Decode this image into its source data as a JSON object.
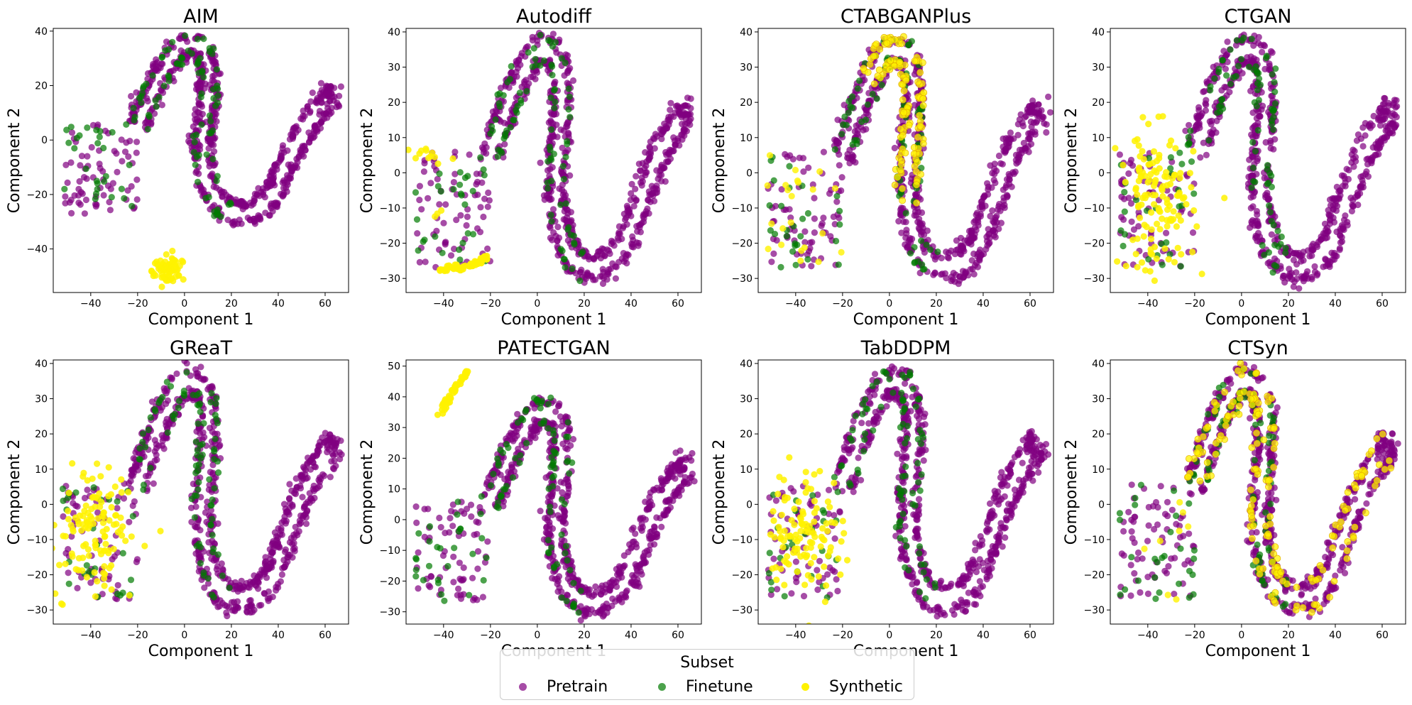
{
  "chart_data": [
    {
      "type": "scatter",
      "title": "AIM",
      "xlabel": "Component 1",
      "ylabel": "Component 2",
      "xlim": [
        -56,
        70
      ],
      "ylim": [
        -56,
        41
      ],
      "xticks": [
        -40,
        -20,
        0,
        20,
        40,
        60
      ],
      "yticks": [
        -40,
        -20,
        0,
        20,
        40
      ],
      "synthetic_clusters": [
        {
          "cx": -7,
          "cy": -48,
          "sx": 3,
          "sy": 3,
          "n": 70
        }
      ],
      "finetune_spread": "low"
    },
    {
      "type": "scatter",
      "title": "Autodiff",
      "xlabel": "Component 1",
      "ylabel": "Component 2",
      "xlim": [
        -56,
        70
      ],
      "ylim": [
        -34,
        41
      ],
      "xticks": [
        -40,
        -20,
        0,
        20,
        40,
        60
      ],
      "yticks": [
        -30,
        -20,
        -10,
        0,
        10,
        20,
        30,
        40
      ],
      "synthetic_arc": [
        {
          "x": -42,
          "y": -27.5
        },
        {
          "x": -35,
          "y": -27
        },
        {
          "x": -29,
          "y": -26.5
        },
        {
          "x": -24,
          "y": -25
        },
        {
          "x": -21,
          "y": -23
        }
      ],
      "synthetic_extra": [
        {
          "cx": -45,
          "cy": 5,
          "sx": 5,
          "sy": 1.2,
          "n": 14
        },
        {
          "cx": -42,
          "cy": -11,
          "sx": 2,
          "sy": 2,
          "n": 3
        }
      ],
      "finetune_spread": "low"
    },
    {
      "type": "scatter",
      "title": "CTABGANPlus",
      "xlabel": "Component 1",
      "ylabel": "Component 2",
      "xlim": [
        -56,
        70
      ],
      "ylim": [
        -34,
        41
      ],
      "xticks": [
        -40,
        -20,
        0,
        20,
        40,
        60
      ],
      "yticks": [
        -30,
        -20,
        -10,
        0,
        10,
        20,
        30,
        40
      ],
      "synthetic_on_curve": {
        "from": 0.14,
        "to": 0.5,
        "n": 120
      },
      "synthetic_left_n": 22,
      "finetune_spread": "low"
    },
    {
      "type": "scatter",
      "title": "CTGAN",
      "xlabel": "Component 1",
      "ylabel": "Component 2",
      "xlim": [
        -56,
        70
      ],
      "ylim": [
        -34,
        41
      ],
      "xticks": [
        -40,
        -20,
        0,
        20,
        40,
        60
      ],
      "yticks": [
        -30,
        -20,
        -10,
        0,
        10,
        20,
        30,
        40
      ],
      "synthetic_clusters": [
        {
          "cx": -36,
          "cy": -8,
          "sx": 8,
          "sy": 10,
          "n": 130
        }
      ],
      "finetune_spread": "low"
    },
    {
      "type": "scatter",
      "title": "GReaT",
      "xlabel": "Component 1",
      "ylabel": "Component 2",
      "xlim": [
        -56,
        70
      ],
      "ylim": [
        -34,
        41
      ],
      "xticks": [
        -40,
        -20,
        0,
        20,
        40,
        60
      ],
      "yticks": [
        -30,
        -20,
        -10,
        0,
        10,
        20,
        30,
        40
      ],
      "synthetic_clusters": [
        {
          "cx": -37,
          "cy": -7,
          "sx": 8,
          "sy": 9,
          "n": 120
        }
      ],
      "finetune_spread": "low"
    },
    {
      "type": "scatter",
      "title": "PATECTGAN",
      "xlabel": "Component 1",
      "ylabel": "Component 2",
      "xlim": [
        -56,
        70
      ],
      "ylim": [
        -34,
        52
      ],
      "xticks": [
        -40,
        -20,
        0,
        20,
        40,
        60
      ],
      "yticks": [
        -30,
        -20,
        -10,
        0,
        10,
        20,
        30,
        40,
        50
      ],
      "synthetic_arc": [
        {
          "x": -42,
          "y": 33
        },
        {
          "x": -38,
          "y": 39
        },
        {
          "x": -34,
          "y": 44
        },
        {
          "x": -30,
          "y": 48
        }
      ],
      "finetune_spread": "low"
    },
    {
      "type": "scatter",
      "title": "TabDDPM",
      "xlabel": "Component 1",
      "ylabel": "Component 2",
      "xlim": [
        -56,
        70
      ],
      "ylim": [
        -34,
        41
      ],
      "xticks": [
        -40,
        -20,
        0,
        20,
        40,
        60
      ],
      "yticks": [
        -30,
        -20,
        -10,
        0,
        10,
        20,
        30,
        40
      ],
      "synthetic_clusters": [
        {
          "cx": -36,
          "cy": -8,
          "sx": 8,
          "sy": 9,
          "n": 110
        }
      ],
      "finetune_spread": "low"
    },
    {
      "type": "scatter",
      "title": "CTSyn",
      "xlabel": "Component 1",
      "ylabel": "Component 2",
      "xlim": [
        -56,
        70
      ],
      "ylim": [
        -34,
        41
      ],
      "xticks": [
        -40,
        -20,
        0,
        20,
        40,
        60
      ],
      "yticks": [
        -30,
        -20,
        -10,
        0,
        10,
        20,
        30,
        40
      ],
      "synthetic_on_curve": {
        "from": 0.0,
        "to": 1.0,
        "n": 170
      },
      "synthetic_left_n": 8,
      "finetune_spread": "high"
    }
  ],
  "shared": {
    "pretrain_curve": [
      {
        "x": -20,
        "y": 5
      },
      {
        "x": -16,
        "y": 13
      },
      {
        "x": -12,
        "y": 21
      },
      {
        "x": -7,
        "y": 28
      },
      {
        "x": -2,
        "y": 34
      },
      {
        "x": 3,
        "y": 35
      },
      {
        "x": 8,
        "y": 33
      },
      {
        "x": 10,
        "y": 26
      },
      {
        "x": 10,
        "y": 17
      },
      {
        "x": 9,
        "y": 8
      },
      {
        "x": 8,
        "y": 0
      },
      {
        "x": 8,
        "y": -8
      },
      {
        "x": 10,
        "y": -16
      },
      {
        "x": 13,
        "y": -22
      },
      {
        "x": 18,
        "y": -26
      },
      {
        "x": 25,
        "y": -27
      },
      {
        "x": 32,
        "y": -25
      },
      {
        "x": 38,
        "y": -20
      },
      {
        "x": 42,
        "y": -12
      },
      {
        "x": 47,
        "y": -3
      },
      {
        "x": 52,
        "y": 5
      },
      {
        "x": 58,
        "y": 12
      },
      {
        "x": 64,
        "y": 17
      }
    ],
    "curve_offset": 3.3,
    "left_cluster": {
      "xmin": -52,
      "xmax": -20,
      "ymin": -27,
      "ymax": 6
    }
  },
  "legend": {
    "title": "Subset",
    "items": [
      {
        "label": "Pretrain",
        "color": "#800080"
      },
      {
        "label": "Finetune",
        "color": "#007A00"
      },
      {
        "label": "Synthetic",
        "color": "#FFF200"
      }
    ]
  }
}
